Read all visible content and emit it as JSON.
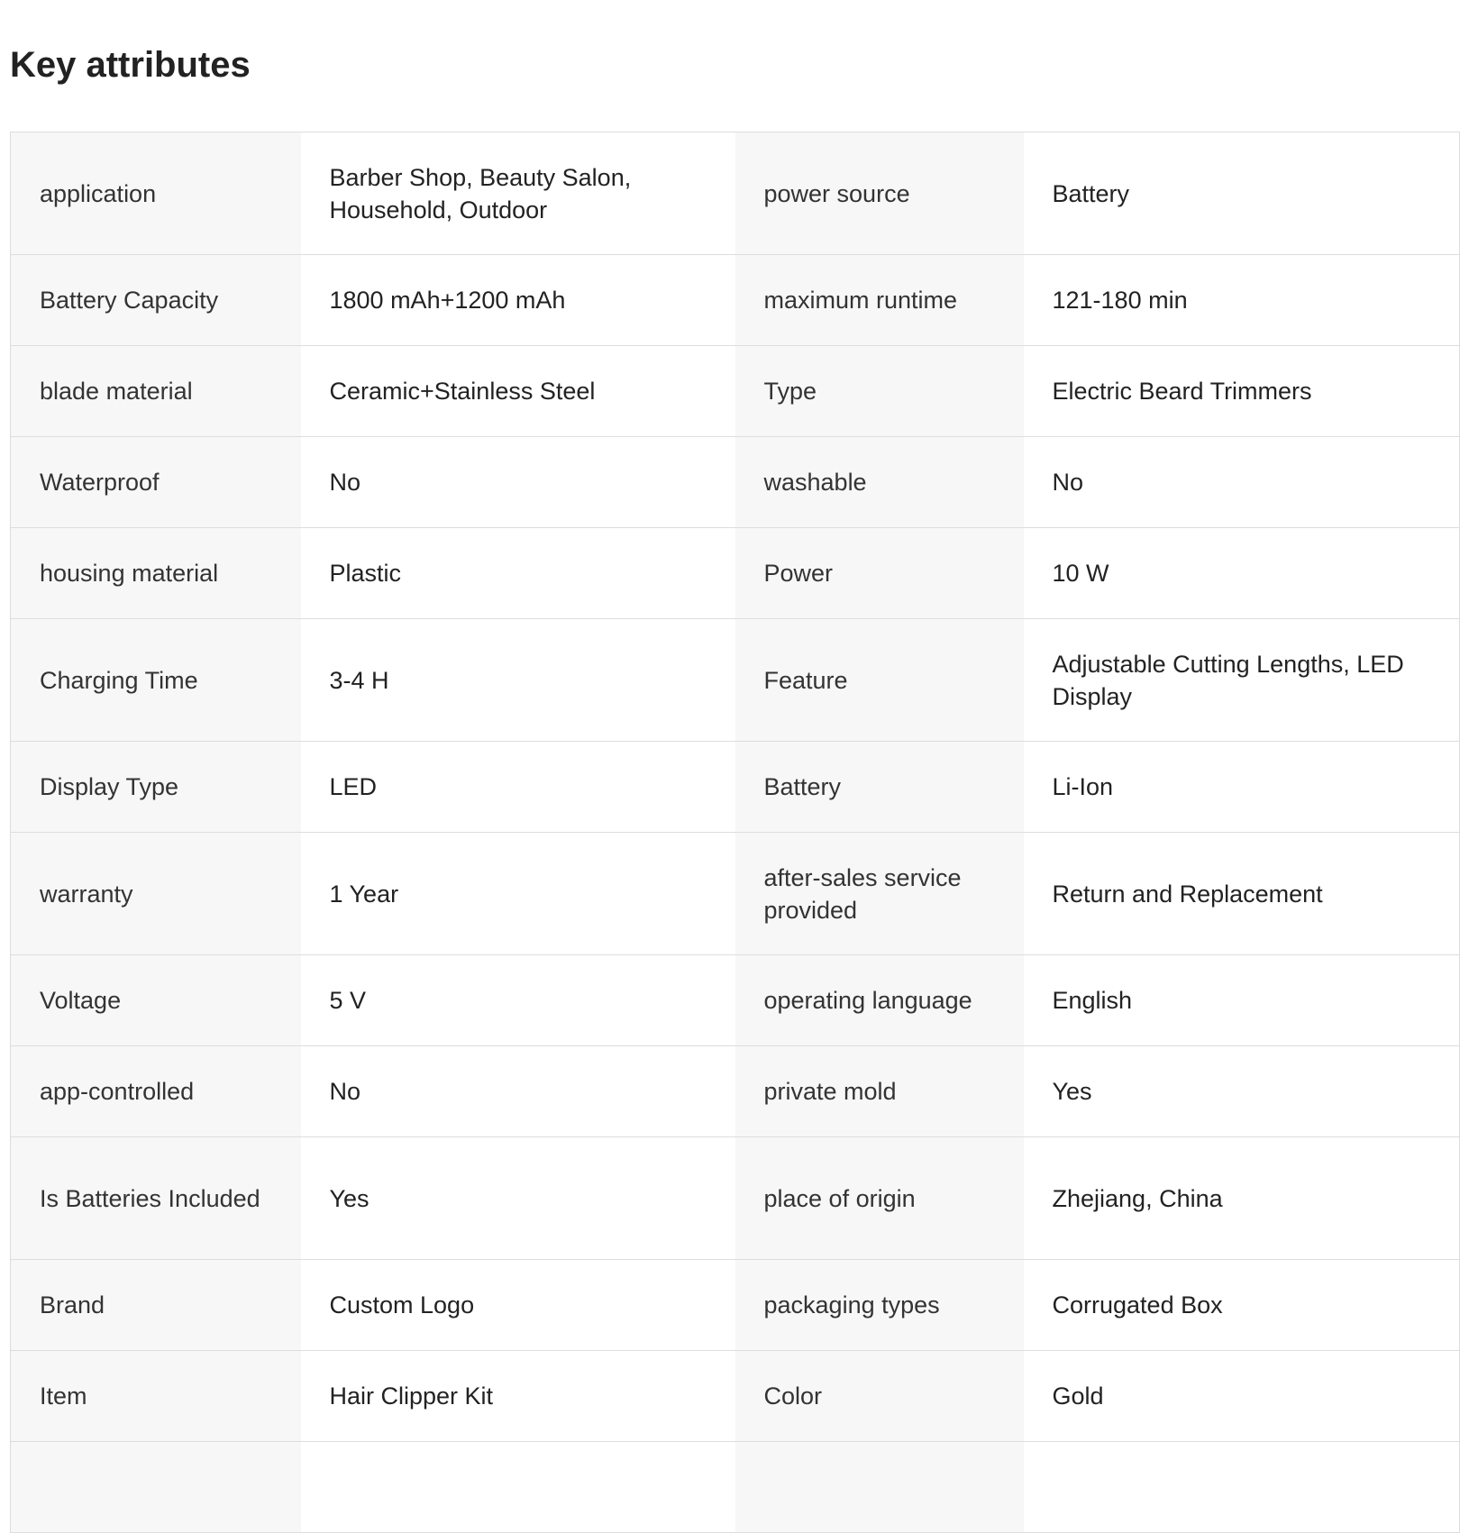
{
  "title": "Key attributes",
  "rows": [
    [
      "application",
      "Barber Shop, Beauty Salon, Household, Outdoor",
      "power source",
      "Battery"
    ],
    [
      "Battery Capacity",
      "1800 mAh+1200 mAh",
      "maximum runtime",
      "121-180 min"
    ],
    [
      "blade material",
      "Ceramic+Stainless Steel",
      "Type",
      "Electric Beard Trimmers"
    ],
    [
      "Waterproof",
      "No",
      "washable",
      "No"
    ],
    [
      "housing material",
      "Plastic",
      "Power",
      "10 W"
    ],
    [
      "Charging Time",
      "3-4 H",
      "Feature",
      "Adjustable Cutting Lengths, LED Display"
    ],
    [
      "Display Type",
      "LED",
      "Battery",
      "Li-Ion"
    ],
    [
      "warranty",
      "1 Year",
      "after-sales service provided",
      "Return and Replacement"
    ],
    [
      "Voltage",
      "5 V",
      "operating language",
      "English"
    ],
    [
      "app-controlled",
      "No",
      "private mold",
      "Yes"
    ],
    [
      "Is Batteries Included",
      "Yes",
      "place of origin",
      "Zhejiang, China"
    ],
    [
      "Brand",
      "Custom Logo",
      "packaging types",
      "Corrugated Box"
    ],
    [
      "Item",
      "Hair Clipper Kit",
      "Color",
      "Gold"
    ],
    [
      "",
      "",
      "",
      ""
    ]
  ]
}
